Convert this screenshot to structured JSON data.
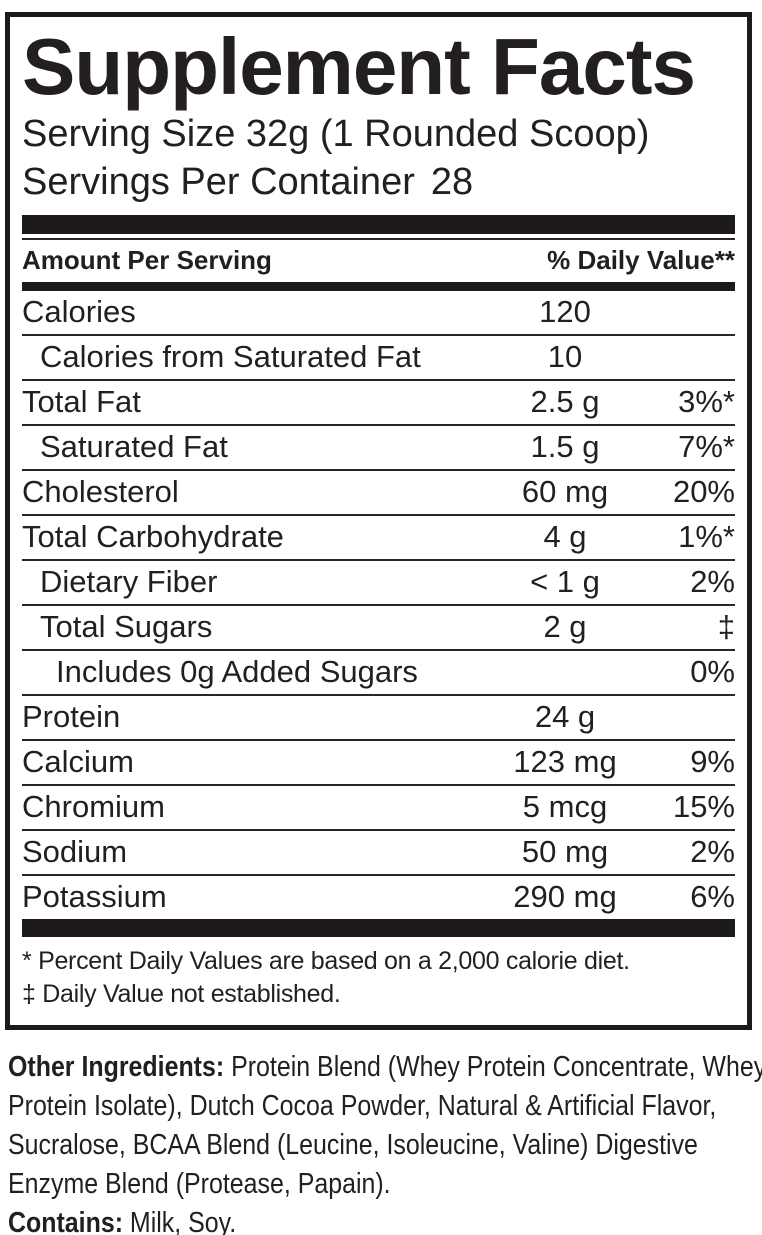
{
  "label": {
    "title": "Supplement Facts",
    "serving_size": "Serving Size 32g (1 Rounded Scoop)",
    "servings_per_container": {
      "label": "Servings Per Container",
      "value": "28"
    },
    "column_headers": {
      "left": "Amount Per Serving",
      "right": "% Daily Value**"
    },
    "rows": [
      {
        "name": "Calories",
        "amount": "120",
        "dv": ""
      },
      {
        "name": "Calories from Saturated Fat",
        "amount": "10",
        "dv": ""
      },
      {
        "name": "Total Fat",
        "amount": "2.5 g",
        "dv": "3%*"
      },
      {
        "name": "Saturated Fat",
        "amount": "1.5 g",
        "dv": "7%*"
      },
      {
        "name": "Cholesterol",
        "amount": "60 mg",
        "dv": "20%"
      },
      {
        "name": "Total Carbohydrate",
        "amount": "4 g",
        "dv": "1%*"
      },
      {
        "name": "Dietary Fiber",
        "amount": "< 1 g",
        "dv": "2%"
      },
      {
        "name": "Total Sugars",
        "amount": "2 g",
        "dv": "‡"
      },
      {
        "name": "Includes 0g Added Sugars",
        "amount": "",
        "dv": "0%"
      },
      {
        "name": "Protein",
        "amount": "24 g",
        "dv": ""
      },
      {
        "name": "Calcium",
        "amount": "123 mg",
        "dv": "9%"
      },
      {
        "name": "Chromium",
        "amount": "5 mcg",
        "dv": "15%"
      },
      {
        "name": "Sodium",
        "amount": "50 mg",
        "dv": "2%"
      },
      {
        "name": "Potassium",
        "amount": "290 mg",
        "dv": "6%"
      }
    ],
    "footnotes": [
      "* Percent Daily Values are based on a 2,000 calorie diet.",
      "‡ Daily Value not established."
    ]
  },
  "other_ingredients": {
    "label": "Other Ingredients:",
    "text": "Protein Blend (Whey Protein Concentrate, Whey Protein Isolate), Dutch Cocoa Powder, Natural & Artificial Flavor, Sucralose, BCAA Blend (Leucine, Isoleucine, Valine) Digestive Enzyme Blend (Protease, Papain)."
  },
  "contains": {
    "label": "Contains:",
    "text": "Milk, Soy."
  },
  "colors": {
    "text": "#231f20",
    "border": "#1e1a1b",
    "background": "#ffffff"
  }
}
